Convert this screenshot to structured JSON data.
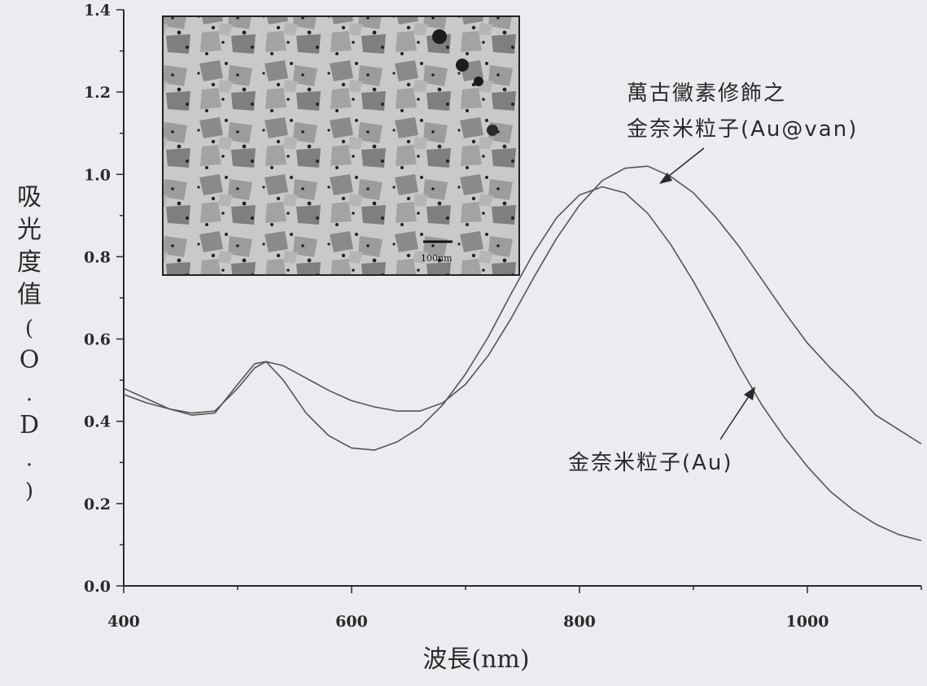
{
  "chart_data": {
    "type": "line",
    "title": "",
    "xlabel": "波長(nm)",
    "ylabel": "吸光度值(O.D.)",
    "xlim": [
      400,
      1100
    ],
    "ylim": [
      0,
      1.4
    ],
    "x_ticks": [
      400,
      600,
      800,
      1000
    ],
    "x_tick_labels": [
      "400",
      "600",
      "800",
      "1000"
    ],
    "y_ticks": [
      0,
      0.2,
      0.4,
      0.6,
      0.8,
      1.0,
      1.2,
      1.4
    ],
    "y_tick_labels": [
      "0.0",
      "0.2",
      "0.4",
      "0.6",
      "0.8",
      "1.0",
      "1.2",
      "1.4"
    ],
    "grid": false,
    "series": [
      {
        "name": "萬古黴素修飾之金奈米粒子(Au@van)",
        "x": [
          400,
          420,
          440,
          460,
          480,
          500,
          515,
          525,
          540,
          560,
          580,
          600,
          620,
          640,
          660,
          680,
          700,
          720,
          740,
          760,
          780,
          800,
          820,
          840,
          860,
          880,
          900,
          920,
          940,
          960,
          980,
          1000,
          1020,
          1040,
          1060,
          1080,
          1100
        ],
        "y": [
          0.465,
          0.445,
          0.43,
          0.42,
          0.425,
          0.48,
          0.53,
          0.545,
          0.535,
          0.505,
          0.475,
          0.45,
          0.435,
          0.425,
          0.425,
          0.445,
          0.49,
          0.56,
          0.65,
          0.75,
          0.845,
          0.925,
          0.985,
          1.015,
          1.02,
          0.995,
          0.955,
          0.895,
          0.825,
          0.745,
          0.665,
          0.59,
          0.53,
          0.475,
          0.415,
          0.38,
          0.345
        ]
      },
      {
        "name": "金奈米粒子(Au)",
        "x": [
          400,
          420,
          440,
          460,
          480,
          500,
          515,
          525,
          540,
          560,
          580,
          600,
          620,
          640,
          660,
          680,
          700,
          720,
          740,
          760,
          780,
          800,
          820,
          840,
          860,
          880,
          900,
          920,
          940,
          960,
          980,
          1000,
          1020,
          1040,
          1060,
          1080,
          1100
        ],
        "y": [
          0.48,
          0.455,
          0.43,
          0.415,
          0.42,
          0.49,
          0.54,
          0.545,
          0.5,
          0.42,
          0.365,
          0.335,
          0.33,
          0.35,
          0.385,
          0.44,
          0.515,
          0.605,
          0.71,
          0.81,
          0.895,
          0.95,
          0.97,
          0.955,
          0.905,
          0.83,
          0.74,
          0.64,
          0.535,
          0.44,
          0.36,
          0.29,
          0.23,
          0.185,
          0.15,
          0.125,
          0.11
        ]
      }
    ],
    "annotations": [
      {
        "lines": [
          "萬古黴素修飾之",
          "金奈米粒子(Au@van)"
        ],
        "points_to_series": 0
      },
      {
        "lines": [
          "金奈米粒子(Au)"
        ],
        "points_to_series": 1
      }
    ],
    "inset": {
      "kind": "TEM micrograph",
      "scale_bar_label": "100nm"
    }
  },
  "colors": {
    "background": "#ecebef",
    "axis": "#2a2a2a",
    "line": "#555555"
  }
}
